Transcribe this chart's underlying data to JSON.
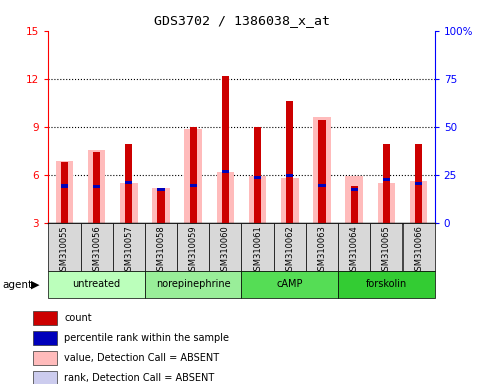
{
  "title": "GDS3702 / 1386038_x_at",
  "samples": [
    "GSM310055",
    "GSM310056",
    "GSM310057",
    "GSM310058",
    "GSM310059",
    "GSM310060",
    "GSM310061",
    "GSM310062",
    "GSM310063",
    "GSM310064",
    "GSM310065",
    "GSM310066"
  ],
  "groups": [
    {
      "label": "untreated",
      "color": "#bbffbb",
      "indices": [
        0,
        1,
        2
      ]
    },
    {
      "label": "norepinephrine",
      "color": "#99ee99",
      "indices": [
        3,
        4,
        5
      ]
    },
    {
      "label": "cAMP",
      "color": "#55dd55",
      "indices": [
        6,
        7,
        8
      ]
    },
    {
      "label": "forskolin",
      "color": "#33cc33",
      "indices": [
        9,
        10,
        11
      ]
    }
  ],
  "red_values": [
    6.8,
    7.4,
    7.9,
    5.1,
    9.0,
    12.2,
    9.0,
    10.6,
    9.4,
    5.3,
    7.9,
    7.9
  ],
  "pink_values": [
    6.85,
    7.55,
    5.5,
    5.2,
    8.85,
    6.2,
    5.9,
    5.8,
    9.6,
    5.9,
    5.5,
    5.6
  ],
  "blue_values": [
    5.3,
    5.25,
    5.5,
    5.1,
    5.35,
    6.2,
    5.85,
    5.95,
    5.35,
    5.1,
    5.7,
    5.45
  ],
  "lavender_values": [
    5.35,
    5.3,
    5.2,
    5.15,
    5.3,
    5.25,
    5.25,
    5.25,
    6.1,
    5.2,
    5.35,
    5.35
  ],
  "ymin": 3,
  "ymax": 15,
  "yticks_left": [
    3,
    6,
    9,
    12,
    15
  ],
  "yticks_right": [
    0,
    25,
    50,
    75,
    100
  ],
  "color_red": "#cc0000",
  "color_blue": "#0000bb",
  "color_pink": "#ffbbbb",
  "color_lavender": "#ccccee",
  "legend_items": [
    {
      "color": "#cc0000",
      "label": "count"
    },
    {
      "color": "#0000bb",
      "label": "percentile rank within the sample"
    },
    {
      "color": "#ffbbbb",
      "label": "value, Detection Call = ABSENT"
    },
    {
      "color": "#ccccee",
      "label": "rank, Detection Call = ABSENT"
    }
  ]
}
